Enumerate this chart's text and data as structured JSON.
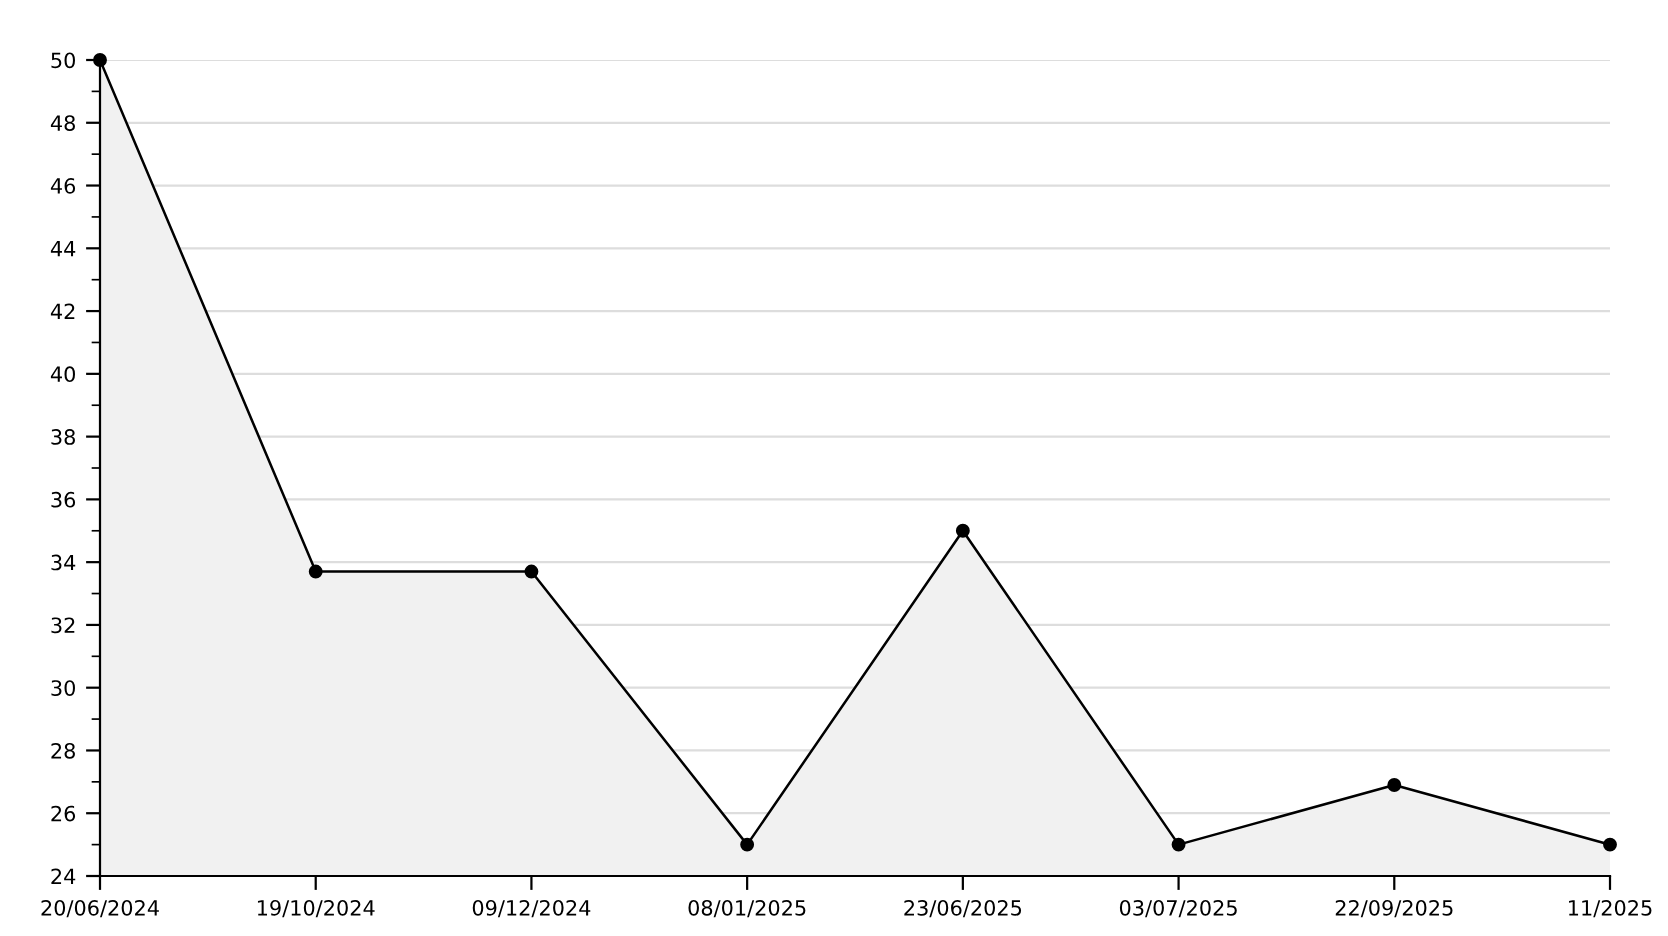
{
  "chart_data": {
    "type": "area",
    "categories": [
      "20/06/2024",
      "19/10/2024",
      "09/12/2024",
      "08/01/2025",
      "23/06/2025",
      "03/07/2025",
      "22/09/2025",
      "11/2025"
    ],
    "series": [
      {
        "color": "#000000",
        "values": [
          50,
          33.7,
          33.7,
          25,
          35,
          25,
          26.9,
          25
        ]
      }
    ],
    "ylim": [
      24,
      50
    ],
    "yticks": [
      24,
      {
        "value": 25,
        "label": null
      },
      26,
      {
        "value": 27,
        "label": null
      },
      28,
      {
        "value": 29,
        "label": null
      },
      30,
      {
        "value": 31,
        "label": null
      },
      32,
      {
        "value": 33,
        "label": null
      },
      34,
      {
        "value": 35,
        "label": null
      },
      36,
      {
        "value": 37,
        "label": null
      },
      38,
      {
        "value": 39,
        "label": null
      },
      40,
      {
        "value": 41,
        "label": null
      },
      42,
      {
        "value": 43,
        "label": null
      },
      44,
      {
        "value": 45,
        "label": null
      },
      46,
      {
        "value": 47,
        "label": null
      },
      48,
      {
        "value": 49,
        "label": null
      },
      50
    ],
    "grid": "y",
    "marker": "circle",
    "line_style": "solid"
  }
}
